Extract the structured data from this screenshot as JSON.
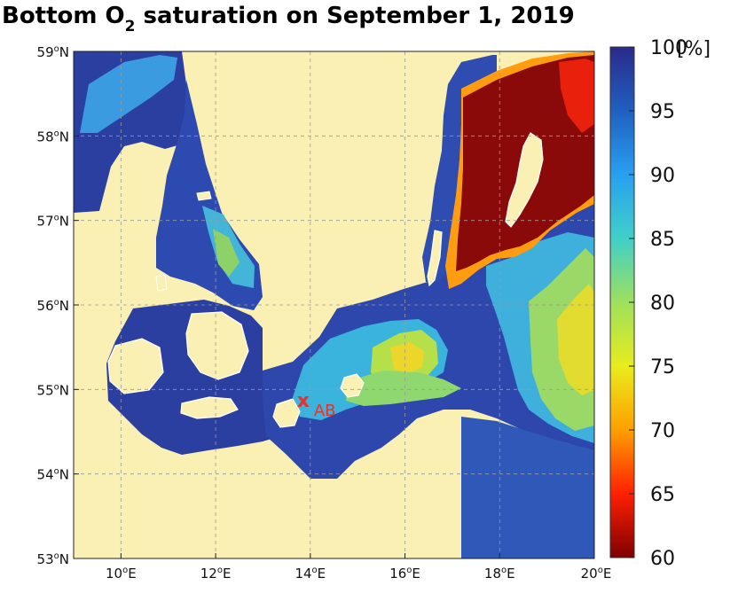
{
  "title": {
    "before_sub": "Bottom O",
    "subscript": "2",
    "after_sub": " saturation on September 1, 2019"
  },
  "map": {
    "region": "Western Baltic Sea, Kattegat and Skagerrak",
    "lon_range": [
      9,
      20
    ],
    "lat_range": [
      53,
      59
    ],
    "grid": "dashed",
    "x_ticks": [
      "10",
      "12",
      "14",
      "16",
      "18",
      "20"
    ],
    "y_ticks": [
      "59",
      "58",
      "57",
      "56",
      "55",
      "54",
      "53"
    ],
    "x_suffix": "E",
    "y_suffix": "N",
    "degree_mark": "o",
    "land_color": "#faf0b4",
    "coast_color": "#ffffff"
  },
  "station": {
    "label": "AB",
    "marker": "x",
    "lon": 13.85,
    "lat": 54.88,
    "color": "#e8312a"
  },
  "colorbar": {
    "unit": "[%]",
    "min": 60,
    "max": 100,
    "ticks": [
      "100",
      "95",
      "90",
      "85",
      "80",
      "75",
      "70",
      "65",
      "60"
    ],
    "colormap": "jet",
    "stops": [
      "#7f0000",
      "#ff2000",
      "#ff9f00",
      "#e8ec1c",
      "#9ee05c",
      "#3fd0c8",
      "#28a0f0",
      "#2060c0",
      "#2a2a8a"
    ]
  }
}
